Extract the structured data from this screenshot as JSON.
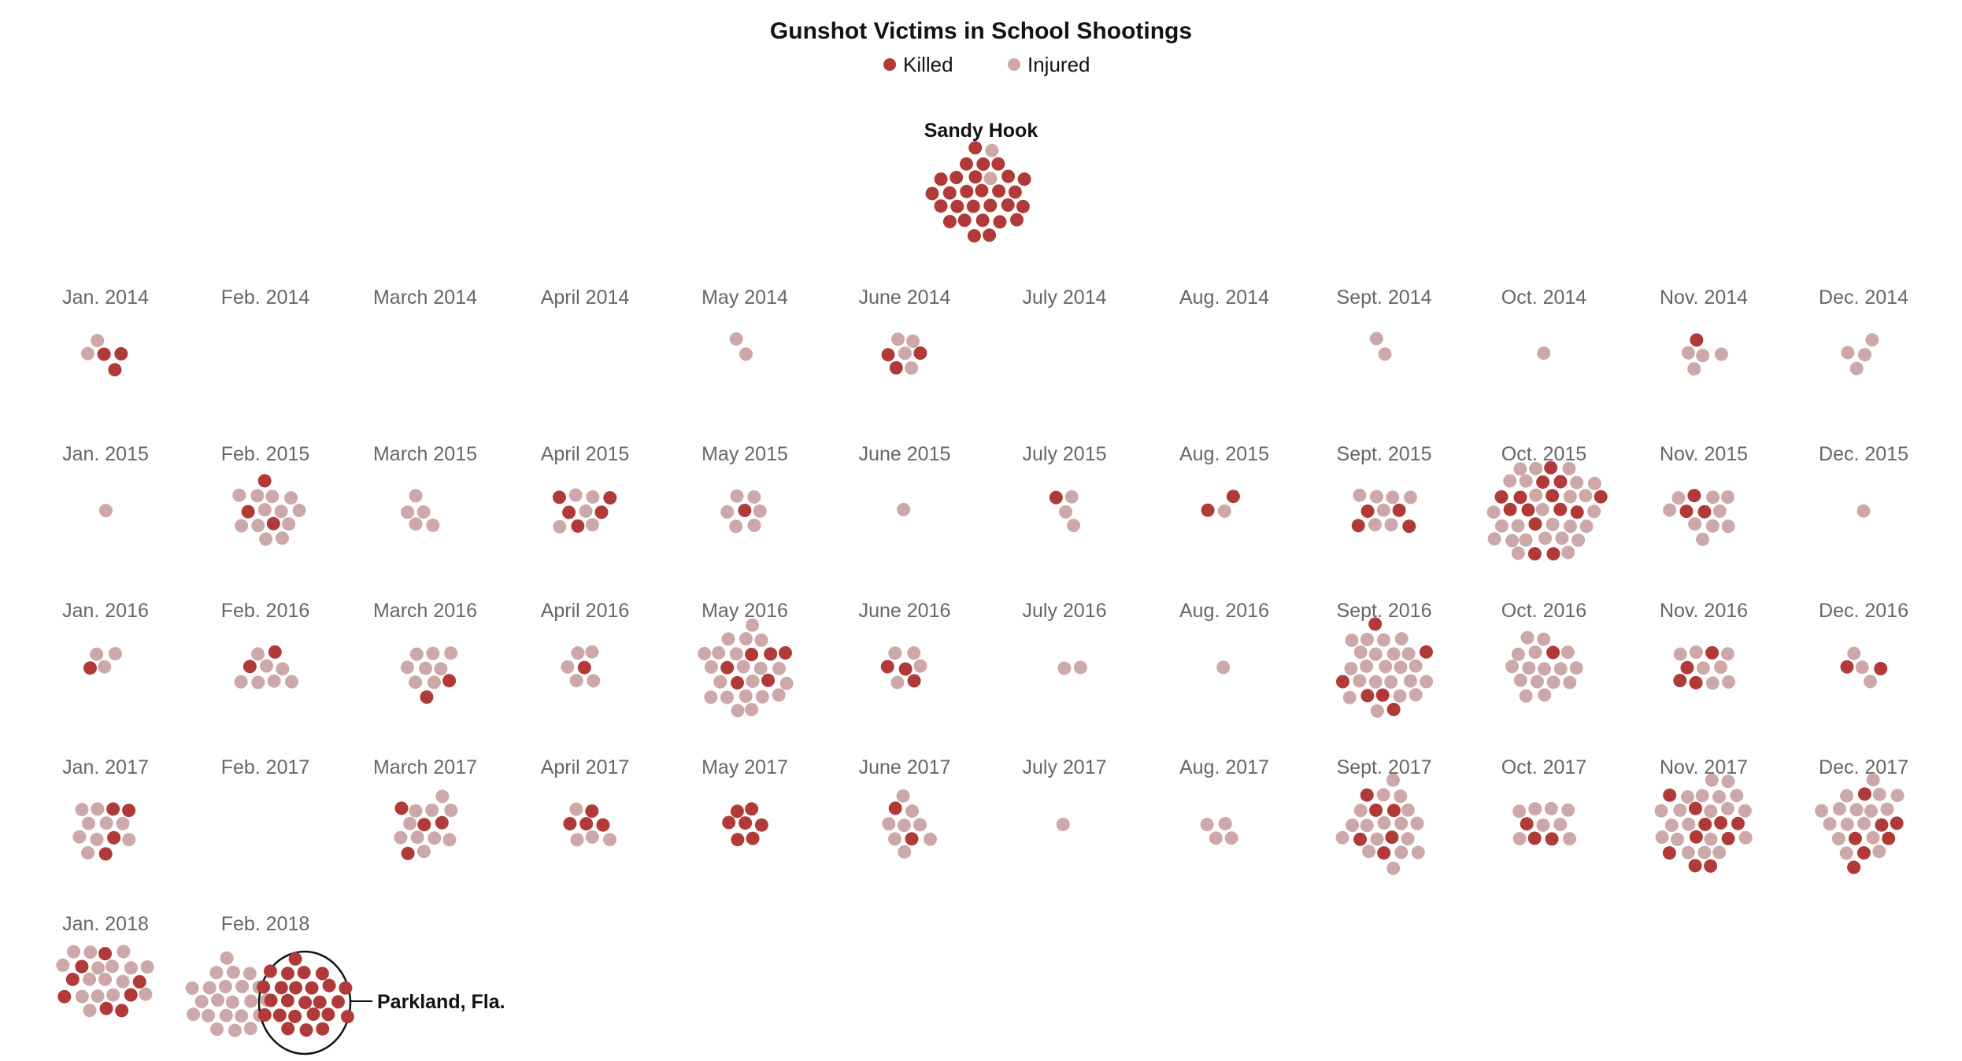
{
  "colors": {
    "killed": "#b03a38",
    "injured": "#cda8a8"
  },
  "chart_data": {
    "type": "dot_cluster",
    "title": "Gunshot Victims in School Shootings",
    "legend": [
      {
        "key": "killed",
        "label": "Killed"
      },
      {
        "key": "injured",
        "label": "Injured"
      }
    ],
    "legend_position": "top-center",
    "featured": {
      "label": "Sandy Hook",
      "killed": 28,
      "injured": 2
    },
    "callout": {
      "month": "Feb. 2018",
      "label": "Parkland, Fla."
    },
    "months": [
      {
        "label": "Jan. 2014",
        "killed": 3,
        "injured": 2
      },
      {
        "label": "Feb. 2014",
        "killed": 0,
        "injured": 0
      },
      {
        "label": "March 2014",
        "killed": 0,
        "injured": 0
      },
      {
        "label": "April 2014",
        "killed": 0,
        "injured": 0
      },
      {
        "label": "May 2014",
        "killed": 0,
        "injured": 2
      },
      {
        "label": "June 2014",
        "killed": 3,
        "injured": 4
      },
      {
        "label": "July 2014",
        "killed": 0,
        "injured": 0
      },
      {
        "label": "Aug. 2014",
        "killed": 0,
        "injured": 0
      },
      {
        "label": "Sept. 2014",
        "killed": 0,
        "injured": 2
      },
      {
        "label": "Oct. 2014",
        "killed": 0,
        "injured": 1
      },
      {
        "label": "Nov. 2014",
        "killed": 1,
        "injured": 4
      },
      {
        "label": "Dec. 2014",
        "killed": 0,
        "injured": 4
      },
      {
        "label": "Jan. 2015",
        "killed": 0,
        "injured": 1
      },
      {
        "label": "Feb. 2015",
        "killed": 3,
        "injured": 12
      },
      {
        "label": "March 2015",
        "killed": 0,
        "injured": 5
      },
      {
        "label": "April 2015",
        "killed": 5,
        "injured": 5
      },
      {
        "label": "May 2015",
        "killed": 1,
        "injured": 6
      },
      {
        "label": "June 2015",
        "killed": 0,
        "injured": 1
      },
      {
        "label": "July 2015",
        "killed": 1,
        "injured": 3
      },
      {
        "label": "Aug. 2015",
        "killed": 2,
        "injured": 1
      },
      {
        "label": "Sept. 2015",
        "killed": 4,
        "injured": 7
      },
      {
        "label": "Oct. 2015",
        "killed": 14,
        "injured": 26
      },
      {
        "label": "Nov. 2015",
        "killed": 3,
        "injured": 9
      },
      {
        "label": "Dec. 2015",
        "killed": 0,
        "injured": 1
      },
      {
        "label": "Jan. 2016",
        "killed": 1,
        "injured": 3
      },
      {
        "label": "Feb. 2016",
        "killed": 2,
        "injured": 7
      },
      {
        "label": "March 2016",
        "killed": 2,
        "injured": 8
      },
      {
        "label": "April 2016",
        "killed": 1,
        "injured": 5
      },
      {
        "label": "May 2016",
        "killed": 6,
        "injured": 21
      },
      {
        "label": "June 2016",
        "killed": 3,
        "injured": 4
      },
      {
        "label": "July 2016",
        "killed": 0,
        "injured": 2
      },
      {
        "label": "Aug. 2016",
        "killed": 0,
        "injured": 1
      },
      {
        "label": "Sept. 2016",
        "killed": 6,
        "injured": 22
      },
      {
        "label": "Oct. 2016",
        "killed": 1,
        "injured": 16
      },
      {
        "label": "Nov. 2016",
        "killed": 4,
        "injured": 7
      },
      {
        "label": "Dec. 2016",
        "killed": 2,
        "injured": 3
      },
      {
        "label": "Jan. 2017",
        "killed": 4,
        "injured": 9
      },
      {
        "label": "Feb. 2017",
        "killed": 0,
        "injured": 0
      },
      {
        "label": "March 2017",
        "killed": 4,
        "injured": 10
      },
      {
        "label": "April 2017",
        "killed": 4,
        "injured": 4
      },
      {
        "label": "May 2017",
        "killed": 7,
        "injured": 0
      },
      {
        "label": "June 2017",
        "killed": 2,
        "injured": 8
      },
      {
        "label": "July 2017",
        "killed": 0,
        "injured": 1
      },
      {
        "label": "Aug. 2017",
        "killed": 0,
        "injured": 4
      },
      {
        "label": "Sept. 2017",
        "killed": 6,
        "injured": 17
      },
      {
        "label": "Oct. 2017",
        "killed": 3,
        "injured": 8
      },
      {
        "label": "Nov. 2017",
        "killed": 10,
        "injured": 20
      },
      {
        "label": "Dec. 2017",
        "killed": 7,
        "injured": 16
      },
      {
        "label": "Jan. 2018",
        "killed": 8,
        "injured": 16
      },
      {
        "label": "Feb. 2018",
        "killed": 25,
        "injured": 22
      }
    ]
  }
}
